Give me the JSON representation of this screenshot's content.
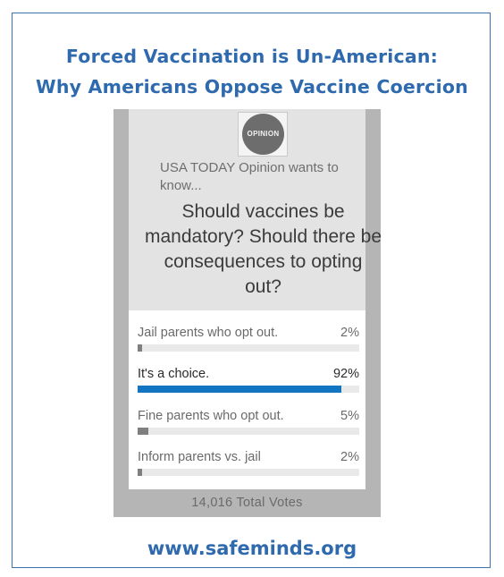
{
  "headline": {
    "line1": "Forced Vaccination is Un-American:",
    "line2": "Why Americans Oppose Vaccine Coercion"
  },
  "poll": {
    "logo_text": "OPINION",
    "asker": "USA TODAY Opinion wants to know...",
    "question": "Should vaccines be mandatory? Should there be consequences to opting out?",
    "options": [
      {
        "label": "Jail parents who opt out.",
        "percent": "2%",
        "fraction": 0.02,
        "selected": false
      },
      {
        "label": "It's a choice.",
        "percent": "92%",
        "fraction": 0.92,
        "selected": true
      },
      {
        "label": "Fine parents who opt out.",
        "percent": "5%",
        "fraction": 0.05,
        "selected": false
      },
      {
        "label": "Inform parents vs. jail",
        "percent": "2%",
        "fraction": 0.02,
        "selected": false
      }
    ],
    "total_votes": "14,016 Total Votes"
  },
  "footer": {
    "site": "www.safeminds.org"
  },
  "colors": {
    "brand_blue": "#2f6aae",
    "selected_bar": "#1275c1",
    "other_bar": "#7f7f7f"
  }
}
